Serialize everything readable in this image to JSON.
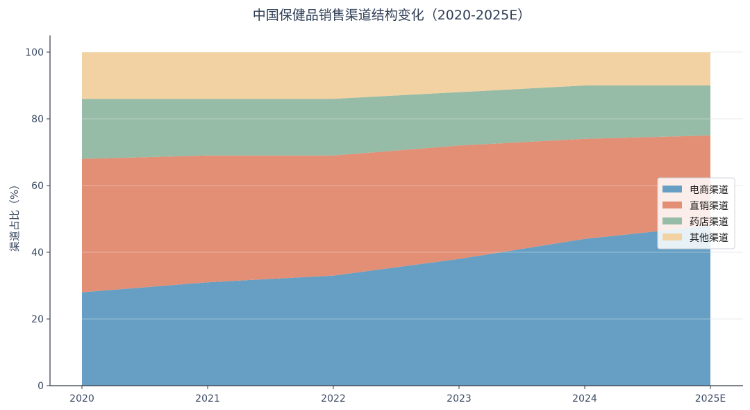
{
  "chart_data": {
    "type": "area",
    "stacked": true,
    "title": "中国保健品销售渠道结构变化（2020-2025E）",
    "xlabel": "",
    "ylabel": "渠道占比（%）",
    "x": [
      "2020",
      "2021",
      "2022",
      "2023",
      "2024",
      "2025E"
    ],
    "ylim": [
      0,
      100
    ],
    "yticks": [
      0,
      20,
      40,
      60,
      80,
      100
    ],
    "grid": true,
    "legend_position": "right",
    "series": [
      {
        "name": "电商渠道",
        "values": [
          28,
          31,
          33,
          38,
          44,
          48
        ],
        "color": "#669fc3"
      },
      {
        "name": "直销渠道",
        "values": [
          40,
          38,
          36,
          34,
          30,
          27
        ],
        "color": "#e28f76"
      },
      {
        "name": "药店渠道",
        "values": [
          18,
          17,
          17,
          16,
          16,
          15
        ],
        "color": "#96bba6"
      },
      {
        "name": "其他渠道",
        "values": [
          14,
          14,
          14,
          12,
          10,
          10
        ],
        "color": "#f2d2a2"
      }
    ]
  }
}
